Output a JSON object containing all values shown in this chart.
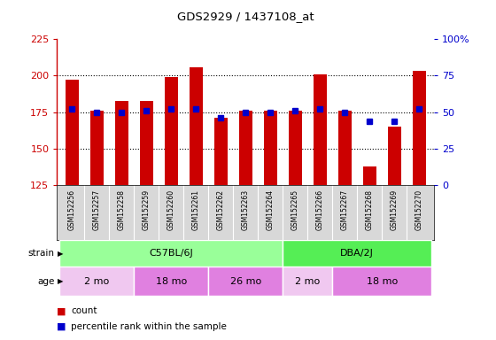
{
  "title": "GDS2929 / 1437108_at",
  "samples": [
    "GSM152256",
    "GSM152257",
    "GSM152258",
    "GSM152259",
    "GSM152260",
    "GSM152261",
    "GSM152262",
    "GSM152263",
    "GSM152264",
    "GSM152265",
    "GSM152266",
    "GSM152267",
    "GSM152268",
    "GSM152269",
    "GSM152270"
  ],
  "counts": [
    197,
    176,
    183,
    183,
    199,
    206,
    171,
    176,
    176,
    176,
    201,
    176,
    138,
    165,
    203
  ],
  "percentiles": [
    52,
    50,
    50,
    51,
    52,
    52,
    46,
    50,
    50,
    51,
    52,
    50,
    44,
    44,
    52
  ],
  "ylim_left": [
    125,
    225
  ],
  "ylim_right": [
    0,
    100
  ],
  "yticks_left": [
    125,
    150,
    175,
    200,
    225
  ],
  "yticks_right": [
    0,
    25,
    50,
    75,
    100
  ],
  "yticklabels_right": [
    "0",
    "25",
    "50",
    "75",
    "100%"
  ],
  "bar_color": "#cc0000",
  "dot_color": "#0000cc",
  "strain_groups": [
    {
      "label": "C57BL/6J",
      "start": 0,
      "end": 9,
      "color": "#99ff99"
    },
    {
      "label": "DBA/2J",
      "start": 9,
      "end": 15,
      "color": "#55ee55"
    }
  ],
  "age_groups": [
    {
      "label": "2 mo",
      "start": 0,
      "end": 3,
      "color": "#f0c8f0"
    },
    {
      "label": "18 mo",
      "start": 3,
      "end": 6,
      "color": "#e080e0"
    },
    {
      "label": "26 mo",
      "start": 6,
      "end": 9,
      "color": "#e080e0"
    },
    {
      "label": "2 mo",
      "start": 9,
      "end": 11,
      "color": "#f0c8f0"
    },
    {
      "label": "18 mo",
      "start": 11,
      "end": 15,
      "color": "#e080e0"
    }
  ],
  "strain_label": "strain",
  "age_label": "age",
  "legend_count_label": "count",
  "legend_percentile_label": "percentile rank within the sample",
  "background_color": "#ffffff",
  "plot_bg_color": "#ffffff",
  "left_axis_color": "#cc0000",
  "right_axis_color": "#0000cc",
  "gridline_ticks": [
    150,
    175,
    200
  ],
  "label_band_color": "#d8d8d8"
}
